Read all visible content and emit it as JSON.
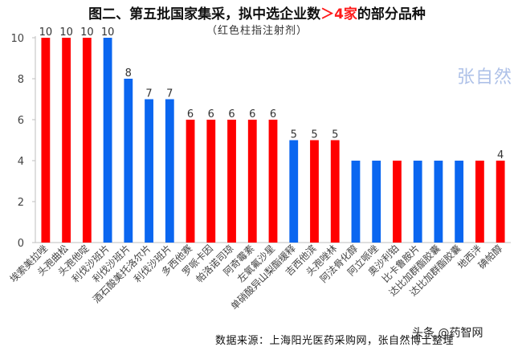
{
  "header": {
    "title_pre": "图二、第五批国家集采，拟中选企业数",
    "title_hl": "＞4家",
    "title_post": "的部分品种",
    "subtitle": "（红色柱指注射剂）"
  },
  "footer": {
    "source": "数据来源：上海阳光医药采购网，张自然博士整理",
    "watermark": "张自然",
    "brand": "头条 @药智网"
  },
  "colors": {
    "injection": "#ff0000",
    "other": "#0a66f0",
    "axis": "#bfbfbf",
    "label": "#444444"
  },
  "chart_data": {
    "type": "bar",
    "title": "图二、第五批国家集采，拟中选企业数＞4家的部分品种",
    "subtitle": "（红色柱指注射剂）",
    "ylim": [
      0,
      10
    ],
    "yticks": [
      0,
      2,
      4,
      6,
      8,
      10
    ],
    "grid": false,
    "categories": [
      "埃索美拉唑",
      "头孢曲松",
      "头孢他啶",
      "利伐沙班片",
      "利伐沙班片",
      "酒石酸美托洛尔片",
      "利伐沙班片",
      "多西他赛",
      "罗哌卡因",
      "帕洛诺司琼",
      "阿奇霉素",
      "左氧氟沙星",
      "单硝酸异山梨酯缓释",
      "吉西他滨",
      "头孢唑林",
      "阿法骨化醇",
      "阿立哌唑",
      "奥沙利铂",
      "比卡鲁胺片",
      "达比加群酯胶囊",
      "达比加群酯胶囊",
      "地西泮",
      "碘帕醇"
    ],
    "values": [
      10,
      10,
      10,
      10,
      8,
      7,
      7,
      6,
      6,
      6,
      6,
      6,
      5,
      5,
      5,
      4,
      4,
      4,
      4,
      4,
      4,
      4,
      4
    ],
    "injection": [
      true,
      true,
      true,
      false,
      false,
      false,
      false,
      true,
      true,
      true,
      true,
      true,
      false,
      true,
      true,
      false,
      false,
      true,
      false,
      false,
      false,
      true,
      true
    ],
    "data_labels": [
      "10",
      "10",
      "10",
      "10",
      "8",
      "7",
      "7",
      "6",
      "6",
      "6",
      "6",
      "6",
      "5",
      "5",
      "5",
      "",
      "",
      "",
      "",
      "",
      "",
      "",
      "4"
    ]
  }
}
